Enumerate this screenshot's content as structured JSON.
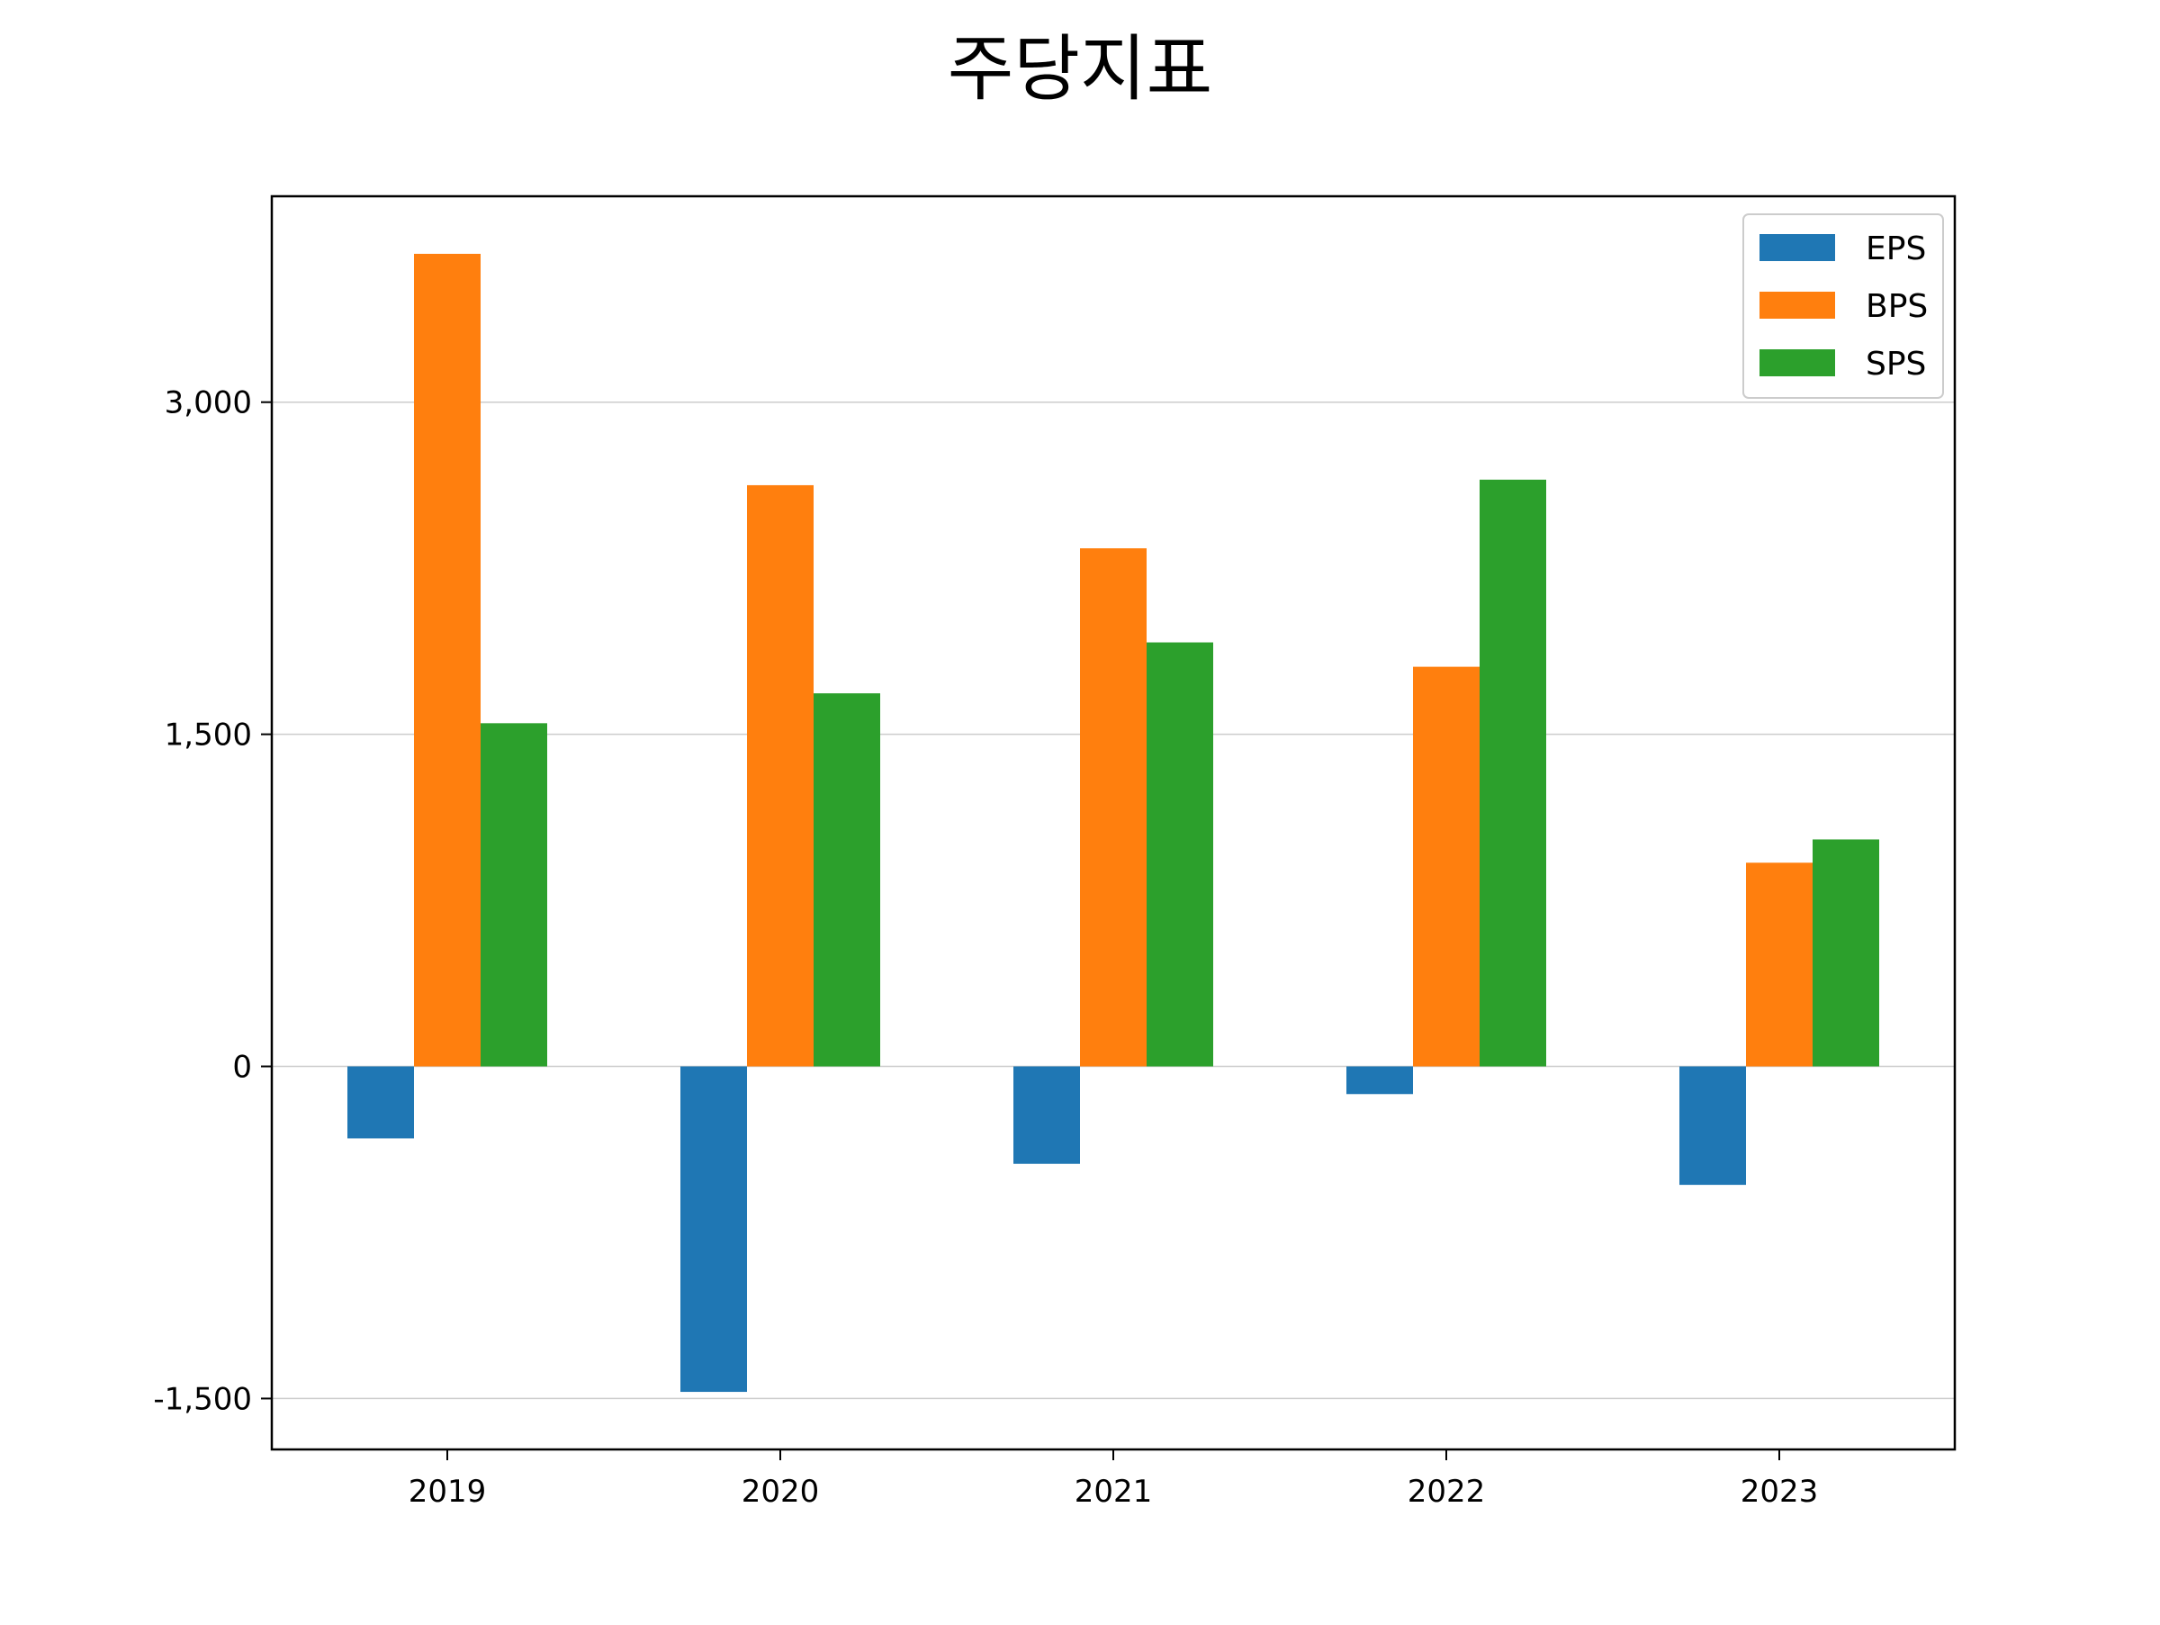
{
  "chart_data": {
    "type": "bar",
    "title": "주당지표",
    "xlabel": "",
    "ylabel": "",
    "categories": [
      "2019",
      "2020",
      "2021",
      "2022",
      "2023"
    ],
    "series": [
      {
        "name": "EPS",
        "color": "#1f77b4",
        "values": [
          -325,
          -1470,
          -440,
          -125,
          -535
        ]
      },
      {
        "name": "BPS",
        "color": "#ff7f0e",
        "values": [
          3670,
          2625,
          2340,
          1805,
          920
        ]
      },
      {
        "name": "SPS",
        "color": "#2ca02c",
        "values": [
          1550,
          1685,
          1915,
          2650,
          1025
        ]
      }
    ],
    "ylim": [
      -1730,
      3930
    ],
    "yticks": [
      -1500,
      0,
      1500,
      3000
    ],
    "ytick_labels": [
      "-1,500",
      "0",
      "1,500",
      "3,000"
    ],
    "grid": "horizontal",
    "legend_position": "top-right"
  }
}
